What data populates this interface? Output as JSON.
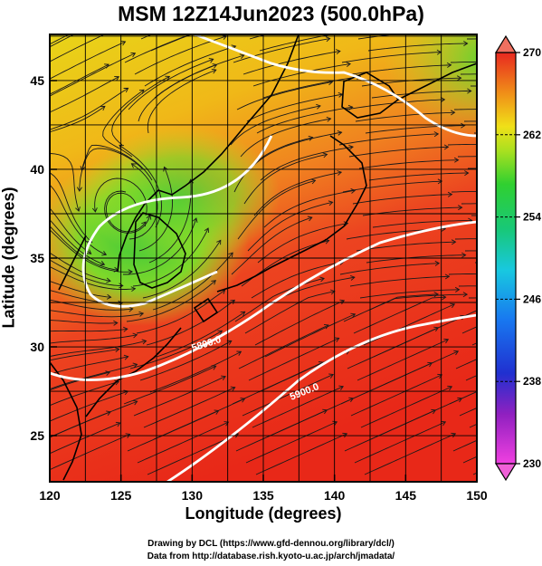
{
  "title": "MSM 12Z14Jun2023 (500.0hPa)",
  "chart_data": {
    "type": "heatmap",
    "title": "MSM 12Z14Jun2023 (500.0hPa)",
    "xlabel": "Longitude (degrees)",
    "ylabel": "Latitude  (degrees)",
    "xlim": [
      120,
      150
    ],
    "ylim": [
      22.4,
      47.6
    ],
    "x_ticks": [
      "120",
      "125",
      "130",
      "135",
      "140",
      "145",
      "150"
    ],
    "y_ticks": [
      "25",
      "30",
      "35",
      "40",
      "45"
    ],
    "colorbar": {
      "min": 230,
      "max": 270,
      "ticks": [
        "230",
        "238",
        "246",
        "254",
        "262",
        "270"
      ]
    },
    "contour_labels": [
      "5800.0",
      "5900.0"
    ],
    "grid": true
  },
  "credits": {
    "line1": "Drawing by DCL (https://www.gfd-dennou.org/library/dcl/)",
    "line2": "Data from http://database.rish.kyoto-u.ac.jp/arch/jmadata/"
  }
}
